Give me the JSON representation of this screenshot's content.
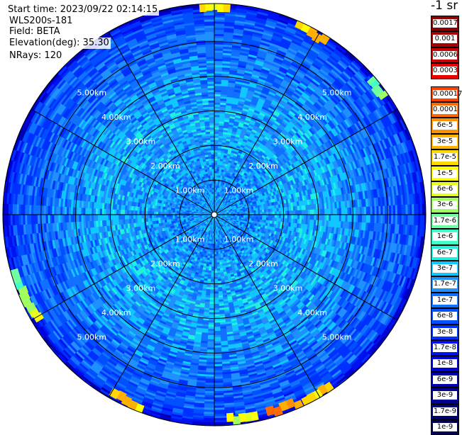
{
  "chart_data": {
    "type": "heatmap",
    "projection": "polar (PPI)",
    "meta": [
      {
        "key": "start_time",
        "text": "Start time: 2023/09/22 02:14:15"
      },
      {
        "key": "instrument",
        "text": "WLS200s-181"
      },
      {
        "key": "field",
        "text": "Field: BETA"
      },
      {
        "key": "elevation",
        "text": "Elevation(deg): 35.30"
      },
      {
        "key": "nrays",
        "text": "NRays: 120"
      }
    ],
    "n_rays": 120,
    "elevation_deg": 35.3,
    "range_rings_km": [
      1,
      2,
      3,
      4,
      5
    ],
    "ring_labels": [
      "1.00km",
      "2.00km",
      "3.00km",
      "4.00km",
      "5.00km"
    ],
    "max_range_km": 6.1,
    "spokes_deg": [
      0,
      30,
      60,
      90,
      120,
      150,
      180,
      210,
      240,
      270,
      300,
      330
    ],
    "colorbar": {
      "unit": "-1 sr",
      "upper_labels": [
        "0.0017",
        "0.001",
        "0.0006",
        "0.0003"
      ],
      "upper_colors": [
        "#8b0000",
        "#a80000",
        "#c80000",
        "#e60000"
      ],
      "lower_labels": [
        "0.00017",
        "0.0001",
        "6e-5",
        "3e-5",
        "1.7e-5",
        "1e-5",
        "6e-6",
        "3e-6",
        "1.7e-6",
        "1e-6",
        "6e-7",
        "3e-7",
        "1.7e-7",
        "1e-7",
        "6e-8",
        "3e-8",
        "1.7e-8",
        "1e-8",
        "6e-9",
        "3e-9",
        "1.7e-9",
        "1e-9"
      ],
      "lower_colors": [
        "#ff4000",
        "#ff6a00",
        "#ff9000",
        "#ffb000",
        "#ffd800",
        "#ffff00",
        "#e4ff20",
        "#a0ff60",
        "#70ffa0",
        "#40ffc8",
        "#20f0e0",
        "#10c8ff",
        "#2090ff",
        "#1070ff",
        "#0050ff",
        "#0030ff",
        "#0010f0",
        "#0000d8",
        "#0000b0",
        "#000090",
        "#000070",
        "#000050"
      ]
    },
    "range_profile": [
      {
        "range_km": 0.0,
        "beta": 3e-07
      },
      {
        "range_km": 1.0,
        "beta": 1.7e-07
      },
      {
        "range_km": 1.5,
        "beta": 2.5e-07
      },
      {
        "range_km": 3.0,
        "beta": 3e-07
      },
      {
        "range_km": 4.0,
        "beta": 2e-07
      },
      {
        "range_km": 5.0,
        "beta": 1e-07
      },
      {
        "range_km": 5.8,
        "beta": 8e-08
      },
      {
        "range_km": 6.1,
        "beta": 1e-08
      }
    ],
    "hotspots": [
      {
        "azimuth_deg": 0,
        "range_km": 6.05,
        "beta": 1e-05
      },
      {
        "azimuth_deg": 28,
        "range_km": 6.0,
        "beta": 3e-05
      },
      {
        "azimuth_deg": 52,
        "range_km": 6.0,
        "beta": 3e-06
      },
      {
        "azimuth_deg": 243,
        "range_km": 6.0,
        "beta": 6e-06
      },
      {
        "azimuth_deg": 250,
        "range_km": 6.0,
        "beta": 3e-06
      },
      {
        "azimuth_deg": 160,
        "range_km": 6.0,
        "beta": 6e-05
      },
      {
        "azimuth_deg": 150,
        "range_km": 6.0,
        "beta": 3e-05
      },
      {
        "azimuth_deg": 205,
        "range_km": 6.0,
        "beta": 3e-05
      },
      {
        "azimuth_deg": 172,
        "range_km": 6.0,
        "beta": 1e-05
      }
    ]
  }
}
